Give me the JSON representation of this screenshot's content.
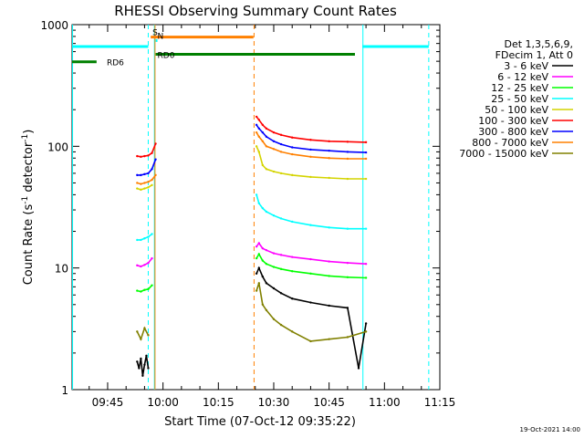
{
  "chart_data": {
    "type": "line",
    "title": "RHESSI Observing Summary Count Rates",
    "xlabel": "Start Time (07-Oct-12 09:35:22)",
    "ylabel_main": "Count Rate (s",
    "ylabel_sup1": "-1",
    "ylabel_mid": " detector",
    "ylabel_sup2": "-1",
    "ylabel_end": ")",
    "footer_date": "19-Oct-2021 14:00",
    "yscale": "log",
    "xlim": [
      "09:35:22",
      "11:15:00"
    ],
    "ylim": [
      1,
      1000
    ],
    "x_ticks": [
      "09:45",
      "10:00",
      "10:15",
      "10:30",
      "10:45",
      "11:00",
      "11:15"
    ],
    "y_ticks": [
      "1",
      "10",
      "100",
      "1000"
    ],
    "legend_header": [
      "Det 1,3,5,6,9,",
      "FDecim 1, Att 0"
    ],
    "legend_position": "right",
    "series": [
      {
        "name": "3 - 6 keV",
        "color": "#000000",
        "segments": [
          {
            "x": [
              "09:53:00",
              "09:53:30",
              "09:54:00",
              "09:54:30",
              "09:55:00",
              "09:55:30",
              "09:56:00"
            ],
            "y": [
              1.7,
              1.5,
              1.8,
              1.3,
              1.6,
              1.9,
              1.5
            ]
          },
          {
            "x": [
              "10:25:20",
              "10:26:00",
              "10:27:00",
              "10:28:00",
              "10:30:00",
              "10:32:00",
              "10:35:00",
              "10:40:00",
              "10:45:00",
              "10:50:00",
              "10:53:00",
              "10:55:00"
            ],
            "y": [
              9,
              10,
              8.5,
              7.5,
              6.8,
              6.2,
              5.6,
              5.2,
              4.9,
              4.7,
              1.5,
              3.5
            ]
          }
        ]
      },
      {
        "name": "6 - 12 keV",
        "color": "#ff00ff",
        "segments": [
          {
            "x": [
              "09:53:00",
              "09:54:00",
              "09:55:00",
              "09:56:00",
              "09:57:00"
            ],
            "y": [
              10.5,
              10.3,
              10.6,
              11,
              12
            ]
          },
          {
            "x": [
              "10:25:20",
              "10:26:00",
              "10:27:00",
              "10:28:00",
              "10:30:00",
              "10:32:00",
              "10:35:00",
              "10:40:00",
              "10:45:00",
              "10:50:00",
              "10:55:00"
            ],
            "y": [
              15,
              16,
              14.5,
              14,
              13.2,
              12.8,
              12.3,
              11.8,
              11.3,
              11,
              10.8
            ]
          }
        ]
      },
      {
        "name": "12 - 25 keV",
        "color": "#00ff00",
        "segments": [
          {
            "x": [
              "09:53:00",
              "09:54:00",
              "09:55:00",
              "09:56:00",
              "09:57:00"
            ],
            "y": [
              6.5,
              6.4,
              6.6,
              6.7,
              7.2
            ]
          },
          {
            "x": [
              "10:25:20",
              "10:26:00",
              "10:27:00",
              "10:28:00",
              "10:30:00",
              "10:32:00",
              "10:35:00",
              "10:40:00",
              "10:45:00",
              "10:50:00",
              "10:55:00"
            ],
            "y": [
              12,
              13,
              11.5,
              10.8,
              10.2,
              9.8,
              9.4,
              9,
              8.6,
              8.4,
              8.3
            ]
          }
        ]
      },
      {
        "name": "25 - 50 keV",
        "color": "#00ffff",
        "segments": [
          {
            "x": [
              "09:53:00",
              "09:54:00",
              "09:55:00",
              "09:56:00",
              "09:57:00"
            ],
            "y": [
              17,
              17,
              17.5,
              18,
              19
            ]
          },
          {
            "x": [
              "10:25:20",
              "10:26:00",
              "10:27:00",
              "10:28:00",
              "10:30:00",
              "10:32:00",
              "10:35:00",
              "10:40:00",
              "10:45:00",
              "10:50:00",
              "10:55:00"
            ],
            "y": [
              40,
              34,
              31,
              29,
              27,
              25.5,
              24,
              22.5,
              21.5,
              21,
              21
            ]
          }
        ]
      },
      {
        "name": "50 - 100 keV",
        "color": "#d4d400",
        "segments": [
          {
            "x": [
              "09:53:00",
              "09:54:00",
              "09:55:00",
              "09:56:00",
              "09:57:00"
            ],
            "y": [
              45,
              44,
              45,
              46,
              48
            ]
          },
          {
            "x": [
              "10:25:20",
              "10:26:00",
              "10:27:00",
              "10:28:00",
              "10:30:00",
              "10:32:00",
              "10:35:00",
              "10:40:00",
              "10:45:00",
              "10:50:00",
              "10:55:00"
            ],
            "y": [
              100,
              90,
              70,
              65,
              62,
              60,
              58,
              56,
              55,
              54,
              54
            ]
          }
        ]
      },
      {
        "name": "100 - 300 keV",
        "color": "#ff0000",
        "segments": [
          {
            "x": [
              "09:53:00",
              "09:54:00",
              "09:55:00",
              "09:56:00",
              "09:57:00",
              "09:58:00"
            ],
            "y": [
              83,
              82,
              83,
              84,
              88,
              105
            ]
          },
          {
            "x": [
              "10:25:20",
              "10:26:00",
              "10:27:00",
              "10:28:00",
              "10:30:00",
              "10:32:00",
              "10:35:00",
              "10:40:00",
              "10:45:00",
              "10:50:00",
              "10:55:00"
            ],
            "y": [
              175,
              165,
              150,
              140,
              130,
              124,
              118,
              113,
              110,
              109,
              108
            ]
          }
        ]
      },
      {
        "name": "300 - 800 keV",
        "color": "#0000ff",
        "segments": [
          {
            "x": [
              "09:53:00",
              "09:54:00",
              "09:55:00",
              "09:56:00",
              "09:57:00",
              "09:58:00"
            ],
            "y": [
              58,
              58,
              59,
              60,
              65,
              78
            ]
          },
          {
            "x": [
              "10:25:20",
              "10:26:00",
              "10:27:00",
              "10:28:00",
              "10:30:00",
              "10:32:00",
              "10:35:00",
              "10:40:00",
              "10:45:00",
              "10:50:00",
              "10:55:00"
            ],
            "y": [
              150,
              140,
              130,
              120,
              110,
              104,
              98,
              94,
              92,
              90,
              89
            ]
          }
        ]
      },
      {
        "name": "800 - 7000 keV",
        "color": "#ff8000",
        "segments": [
          {
            "x": [
              "09:53:00",
              "09:54:00",
              "09:55:00",
              "09:56:00",
              "09:57:00",
              "09:58:00"
            ],
            "y": [
              50,
              49,
              50,
              51,
              53,
              58
            ]
          },
          {
            "x": [
              "10:25:20",
              "10:26:00",
              "10:27:00",
              "10:28:00",
              "10:30:00",
              "10:32:00",
              "10:35:00",
              "10:40:00",
              "10:45:00",
              "10:50:00",
              "10:55:00"
            ],
            "y": [
              130,
              120,
              110,
              100,
              95,
              90,
              86,
              82,
              80,
              79,
              79
            ]
          }
        ]
      },
      {
        "name": "7000 - 15000 keV",
        "color": "#808000",
        "segments": [
          {
            "x": [
              "09:53:00",
              "09:54:00",
              "09:55:00",
              "09:56:00"
            ],
            "y": [
              3,
              2.6,
              3.2,
              2.8
            ]
          },
          {
            "x": [
              "10:25:20",
              "10:26:00",
              "10:27:00",
              "10:28:00",
              "10:30:00",
              "10:32:00",
              "10:35:00",
              "10:40:00",
              "10:45:00",
              "10:50:00",
              "10:55:00"
            ],
            "y": [
              6.5,
              7.5,
              5,
              4.5,
              3.8,
              3.4,
              3,
              2.5,
              2.6,
              2.7,
              3
            ]
          }
        ]
      }
    ],
    "flags": [
      {
        "label": "S",
        "color": "#ff8000",
        "start": "09:56:40",
        "end": "10:24:30",
        "y": 790
      },
      {
        "label": "N",
        "color": "#00ffff",
        "start": "09:58:00",
        "end": "09:58:30",
        "y": 740
      },
      {
        "label": "",
        "color": "#00ffff",
        "start": "09:35:22",
        "end": "09:56:00",
        "y": 660
      },
      {
        "label": "",
        "color": "#00ffff",
        "start": "10:54:00",
        "end": "11:12:00",
        "y": 660
      },
      {
        "label": "RD0",
        "color": "#008000",
        "start": "09:58:00",
        "end": "10:52:00",
        "y": 570
      },
      {
        "label": "RD6",
        "color": "#008000",
        "start": "09:35:22",
        "end": "09:42:00",
        "y": 495
      }
    ],
    "vertical_lines": [
      {
        "x": "09:35:30",
        "color": "#00ffff",
        "style": "solid"
      },
      {
        "x": "09:56:00",
        "color": "#00ffff",
        "style": "dashed"
      },
      {
        "x": "09:57:40",
        "color": "#00ffff",
        "style": "solid"
      },
      {
        "x": "09:57:50",
        "color": "#ff8000",
        "style": "solid"
      },
      {
        "x": "10:24:40",
        "color": "#ff8000",
        "style": "dashed"
      },
      {
        "x": "10:54:10",
        "color": "#00ffff",
        "style": "solid"
      },
      {
        "x": "11:12:00",
        "color": "#00ffff",
        "style": "dashed"
      }
    ]
  }
}
